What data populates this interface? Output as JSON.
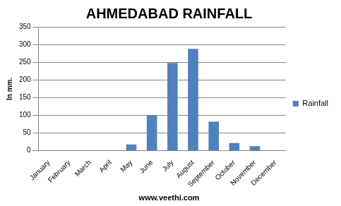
{
  "chart_data": {
    "type": "bar",
    "title": "AHMEDABAD RAINFALL",
    "y_label": "In mm.",
    "source": "www.veethi.com",
    "categories": [
      "January",
      "February",
      "March",
      "April",
      "May",
      "June",
      "July",
      "August",
      "September",
      "October",
      "November",
      "December"
    ],
    "series": [
      {
        "name": "Rainfall",
        "color": "#4f81bd",
        "values": [
          0,
          0,
          0,
          0,
          18,
          100,
          248,
          288,
          82,
          22,
          13,
          0
        ]
      }
    ],
    "ylim": [
      0,
      350
    ],
    "yticks": [
      0,
      50,
      100,
      150,
      200,
      250,
      300,
      350
    ],
    "grid": true,
    "legend": "right"
  }
}
